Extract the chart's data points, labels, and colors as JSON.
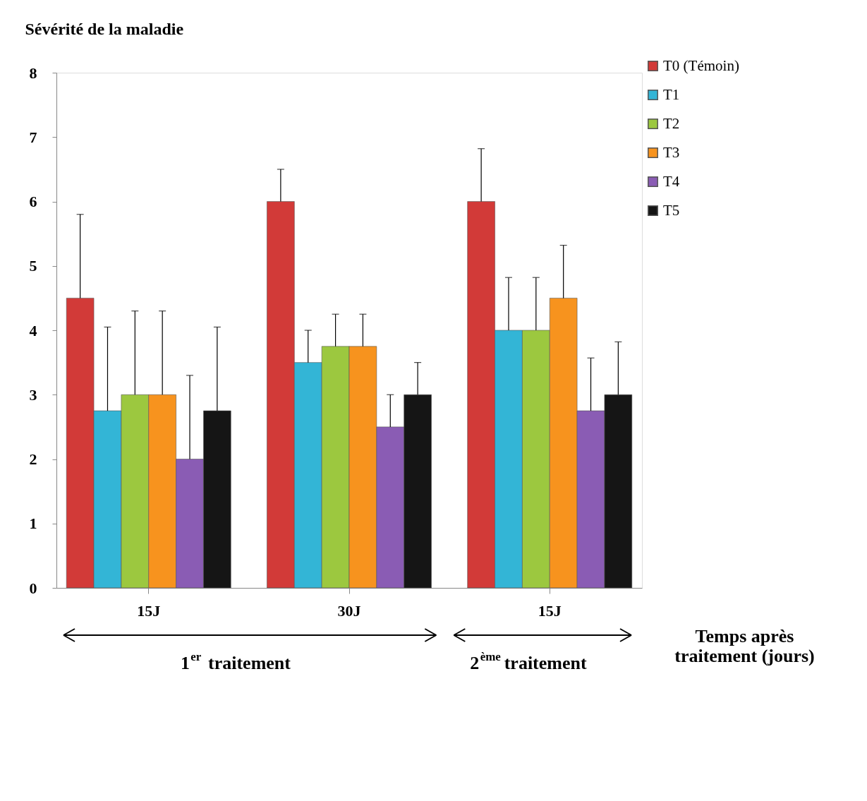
{
  "chart_data": {
    "type": "bar",
    "ylabel": "Sévérité de la maladie",
    "xlabel": "Temps après traitement (jours)",
    "categories": [
      "15J",
      "30J",
      "15J"
    ],
    "series": [
      {
        "name": "T0 (Témoin)",
        "color": "#d23a38",
        "values": [
          4.5,
          6,
          6
        ],
        "errors": [
          [
            4.5,
            5.8
          ],
          [
            6,
            6.5
          ],
          [
            6,
            6.82
          ]
        ]
      },
      {
        "name": "T1",
        "color": "#33b5d6",
        "values": [
          2.75,
          3.5,
          4
        ],
        "errors": [
          [
            2.75,
            4.05
          ],
          [
            3.5,
            4.0
          ],
          [
            4,
            4.82
          ]
        ]
      },
      {
        "name": "T2",
        "color": "#9cc83f",
        "values": [
          3,
          3.75,
          4
        ],
        "errors": [
          [
            3,
            4.3
          ],
          [
            3.75,
            4.25
          ],
          [
            4,
            4.82
          ]
        ]
      },
      {
        "name": "T3",
        "color": "#f7931e",
        "values": [
          3,
          3.75,
          4.5
        ],
        "errors": [
          [
            3,
            4.3
          ],
          [
            3.75,
            4.25
          ],
          [
            4.5,
            5.32
          ]
        ]
      },
      {
        "name": "T4",
        "color": "#8a5cb4",
        "values": [
          2,
          2.5,
          2.75
        ],
        "errors": [
          [
            2,
            3.3
          ],
          [
            2.5,
            3.0
          ],
          [
            2.75,
            3.57
          ]
        ]
      },
      {
        "name": "T5",
        "color": "#151515",
        "values": [
          2.75,
          3,
          3
        ],
        "errors": [
          [
            2.75,
            4.05
          ],
          [
            3,
            3.5
          ],
          [
            3,
            3.82
          ]
        ]
      }
    ],
    "ylim": [
      0,
      8
    ],
    "yticks": [
      0,
      1,
      2,
      3,
      4,
      5,
      6,
      7,
      8
    ],
    "grid": false,
    "legend": "top right",
    "annotations": [
      "1$^{er}$ traitement",
      "2$^{ème}$ traitement"
    ]
  }
}
